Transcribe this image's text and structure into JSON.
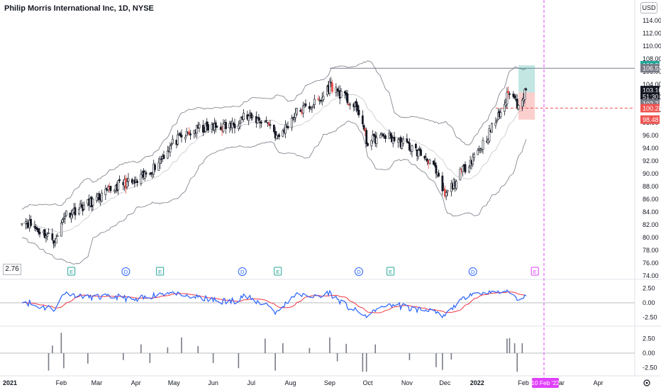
{
  "header": {
    "title": "Philip Morris International Inc, 1D, NYSE",
    "currency": "USD"
  },
  "cursor_value": "2.76",
  "colors": {
    "up": "#131722",
    "down": "#ef5350",
    "band": "#787b86",
    "osc_fast": "#2962ff",
    "osc_slow": "#f23645",
    "target": "#26a69a",
    "stop": "#ef5350",
    "crosshair": "#e040fb"
  },
  "price_axis": {
    "ticks": [
      "114.00",
      "112.00",
      "110.00",
      "108.00",
      "106.00",
      "104.00",
      "102.00",
      "100.00",
      "98.00",
      "96.00",
      "94.00",
      "92.00",
      "90.00",
      "88.00",
      "86.00",
      "84.00",
      "82.00",
      "80.00",
      "78.00",
      "76.00",
      "74.00"
    ],
    "labels": [
      {
        "text": "106.99",
        "price": 107.0,
        "color": "#26a69a",
        "text_color": "#ffffff"
      },
      {
        "text": "106.53",
        "price": 106.53,
        "color": "#787b86",
        "text_color": "#ffffff"
      },
      {
        "text": "103.10",
        "price": 103.1,
        "color": "#131722",
        "text_color": "#ffffff"
      },
      {
        "text": "51:30",
        "price": 102.1,
        "color": "#131722",
        "text_color": "#ffffff"
      },
      {
        "text": "102.74",
        "price": 101.0,
        "color": "#787b86",
        "text_color": "#ffffff"
      },
      {
        "text": "100.28",
        "price": 100.28,
        "color": "#ef5350",
        "text_color": "#ffffff"
      },
      {
        "text": "98.48",
        "price": 98.48,
        "color": "#ef5350",
        "text_color": "#ffffff"
      }
    ]
  },
  "osc_axis": {
    "ticks": [
      "2.50",
      "0.00",
      "-2.50"
    ]
  },
  "hist_axis": {
    "ticks": [
      "2.50",
      "0.00",
      "-2.50"
    ]
  },
  "time_axis": {
    "ticks": [
      "2021",
      "Feb",
      "Mar",
      "Apr",
      "May",
      "Jun",
      "Jul",
      "Aug",
      "Sep",
      "Oct",
      "Nov",
      "Dec",
      "2022",
      "Feb",
      "Mar",
      "Apr"
    ],
    "crosshair_label": "10 Feb '22"
  },
  "event_markers": [
    {
      "label": "E",
      "date": "2021-02-09"
    },
    {
      "label": "D",
      "date": "2021-03-24"
    },
    {
      "label": "E",
      "date": "2021-04-20"
    },
    {
      "label": "D",
      "date": "2021-06-24"
    },
    {
      "label": "E",
      "date": "2021-07-22"
    },
    {
      "label": "D",
      "date": "2021-09-24"
    },
    {
      "label": "E",
      "date": "2021-10-19"
    },
    {
      "label": "D",
      "date": "2021-12-23"
    },
    {
      "label": "E",
      "date": "2022-02-10"
    }
  ],
  "chart_data": {
    "type": "candlestick",
    "title": "Philip Morris International Inc, 1D, NYSE",
    "ylim": [
      73,
      116
    ],
    "price_anchors": [
      {
        "date": "2021-01-01",
        "price": 83.0
      },
      {
        "date": "2021-01-15",
        "price": 81.0
      },
      {
        "date": "2021-01-28",
        "price": 79.5
      },
      {
        "date": "2021-02-03",
        "price": 83.5
      },
      {
        "date": "2021-02-20",
        "price": 85.0
      },
      {
        "date": "2021-03-05",
        "price": 86.5
      },
      {
        "date": "2021-03-20",
        "price": 88.5
      },
      {
        "date": "2021-04-01",
        "price": 88.5
      },
      {
        "date": "2021-04-15",
        "price": 91.0
      },
      {
        "date": "2021-05-01",
        "price": 95.0
      },
      {
        "date": "2021-05-20",
        "price": 97.0
      },
      {
        "date": "2021-06-15",
        "price": 97.5
      },
      {
        "date": "2021-06-25",
        "price": 99.0
      },
      {
        "date": "2021-07-15",
        "price": 98.0
      },
      {
        "date": "2021-07-22",
        "price": 95.5
      },
      {
        "date": "2021-08-05",
        "price": 99.5
      },
      {
        "date": "2021-08-25",
        "price": 101.5
      },
      {
        "date": "2021-09-01",
        "price": 104.0
      },
      {
        "date": "2021-09-15",
        "price": 101.5
      },
      {
        "date": "2021-09-25",
        "price": 99.5
      },
      {
        "date": "2021-09-30",
        "price": 95.0
      },
      {
        "date": "2021-10-15",
        "price": 96.0
      },
      {
        "date": "2021-11-01",
        "price": 94.5
      },
      {
        "date": "2021-11-20",
        "price": 92.0
      },
      {
        "date": "2021-12-01",
        "price": 86.5
      },
      {
        "date": "2021-12-15",
        "price": 90.5
      },
      {
        "date": "2022-01-01",
        "price": 95.0
      },
      {
        "date": "2022-01-15",
        "price": 100.0
      },
      {
        "date": "2022-01-21",
        "price": 103.0
      },
      {
        "date": "2022-01-27",
        "price": 101.0
      },
      {
        "date": "2022-02-03",
        "price": 103.0
      }
    ],
    "last_price": 103.1,
    "resistance_line": {
      "price": 106.53,
      "from": "2021-09-01"
    },
    "position": {
      "entry": 102.74,
      "target": 106.99,
      "stop": 98.48,
      "from": "2022-01-28",
      "to": "2022-02-10"
    },
    "stop_line": {
      "price": 100.28
    },
    "oscillator": {
      "ylim": [
        -3.6,
        3.6
      ]
    },
    "histogram": {
      "ylim": [
        -3.6,
        3.6
      ],
      "bars": [
        {
          "date": "2021-01-22",
          "value": -3.0
        },
        {
          "date": "2021-01-25",
          "value": 1.3
        },
        {
          "date": "2021-02-01",
          "value": 3.5
        },
        {
          "date": "2021-02-03",
          "value": -2.6
        },
        {
          "date": "2021-02-22",
          "value": -1.8
        },
        {
          "date": "2021-03-22",
          "value": -1.2
        },
        {
          "date": "2021-04-05",
          "value": 1.5
        },
        {
          "date": "2021-04-12",
          "value": -1.7
        },
        {
          "date": "2021-04-26",
          "value": 1.0
        },
        {
          "date": "2021-05-07",
          "value": 2.7
        },
        {
          "date": "2021-05-20",
          "value": 1.2
        },
        {
          "date": "2021-06-01",
          "value": -1.7
        },
        {
          "date": "2021-06-21",
          "value": -2.6
        },
        {
          "date": "2021-07-12",
          "value": 2.5
        },
        {
          "date": "2021-07-20",
          "value": -3.0
        },
        {
          "date": "2021-07-26",
          "value": 1.7
        },
        {
          "date": "2021-08-16",
          "value": 0.9
        },
        {
          "date": "2021-09-01",
          "value": 2.7
        },
        {
          "date": "2021-09-07",
          "value": -1.4
        },
        {
          "date": "2021-09-14",
          "value": 1.6
        },
        {
          "date": "2021-09-27",
          "value": -3.2
        },
        {
          "date": "2021-09-30",
          "value": -3.2
        },
        {
          "date": "2021-10-07",
          "value": 1.5
        },
        {
          "date": "2021-11-03",
          "value": -1.2
        },
        {
          "date": "2021-11-24",
          "value": -2.4
        },
        {
          "date": "2021-11-29",
          "value": -2.9
        },
        {
          "date": "2021-12-06",
          "value": -1.1
        },
        {
          "date": "2022-01-19",
          "value": 2.5
        },
        {
          "date": "2022-01-21",
          "value": 2.6
        },
        {
          "date": "2022-01-25",
          "value": 1.7
        },
        {
          "date": "2022-01-27",
          "value": -3.2
        },
        {
          "date": "2022-01-31",
          "value": 1.7
        }
      ]
    }
  }
}
